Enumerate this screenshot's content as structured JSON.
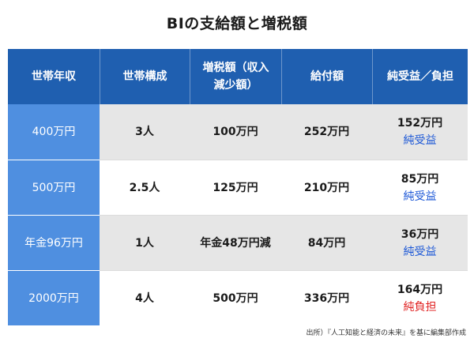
{
  "title": "BIの支給額と増税額",
  "colors": {
    "header_bg": "#1f5fb0",
    "first_col_bg": "#4f8fe0",
    "stripe_bg": "#e6e6e6",
    "benefit_text": "#1a56d6",
    "burden_text": "#e02020"
  },
  "headers": [
    "世帯年収",
    "世帯構成",
    "増税額（収入減少額）",
    "給付額",
    "純受益／負担"
  ],
  "rows": [
    {
      "income": "400万円",
      "household": "3人",
      "tax_increase": "100万円",
      "benefit": "252万円",
      "net_amount": "152万円",
      "net_label": "純受益",
      "net_type": "benefit"
    },
    {
      "income": "500万円",
      "household": "2.5人",
      "tax_increase": "125万円",
      "benefit": "210万円",
      "net_amount": "85万円",
      "net_label": "純受益",
      "net_type": "benefit"
    },
    {
      "income": "年金96万円",
      "household": "1人",
      "tax_increase": "年金48万円減",
      "benefit": "84万円",
      "net_amount": "36万円",
      "net_label": "純受益",
      "net_type": "benefit"
    },
    {
      "income": "2000万円",
      "household": "4人",
      "tax_increase": "500万円",
      "benefit": "336万円",
      "net_amount": "164万円",
      "net_label": "純負担",
      "net_type": "burden"
    }
  ],
  "source": "出所）『人工知能と経済の未来』を基に編集部作成"
}
